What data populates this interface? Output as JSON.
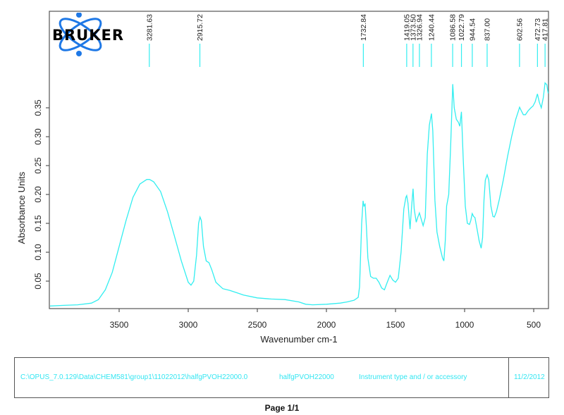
{
  "logo": {
    "text": "BRUKER",
    "icon": "atom-orbit-icon",
    "color": "#1e78e6"
  },
  "chart_data": {
    "type": "line",
    "title": "",
    "xlabel": "Wavenumber cm-1",
    "ylabel": "Absorbance Units",
    "xlim": [
      4005,
      393
    ],
    "ylim": [
      0.004,
      0.41
    ],
    "x_reversed": true,
    "grid": false,
    "legend": null,
    "line_color": "#33eef0",
    "x_ticks": [
      3500,
      3000,
      2500,
      2000,
      1500,
      1000,
      500
    ],
    "x_tick_labels": [
      "3500",
      "3000",
      "2500",
      "2000",
      "1500",
      "1000",
      "500"
    ],
    "y_ticks": [
      0.05,
      0.1,
      0.15,
      0.2,
      0.25,
      0.3,
      0.35
    ],
    "y_tick_labels": [
      "0.05",
      "0.10",
      "0.15",
      "0.20",
      "0.25",
      "0.30",
      "0.35"
    ],
    "peak_labels": [
      "3281.63",
      "2915.72",
      "1732.84",
      "1419.05",
      "1373.50",
      "1326.94",
      "1240.44",
      "1086.58",
      "1022.79",
      "944.54",
      "837.00",
      "602.56",
      "472.73",
      "417.81"
    ],
    "peaks": [
      3281.63,
      2915.72,
      1732.84,
      1419.05,
      1373.5,
      1326.94,
      1240.44,
      1086.58,
      1022.79,
      944.54,
      837.0,
      602.56,
      472.73,
      417.81
    ],
    "series": [
      {
        "name": "halfgPVOH22000",
        "x": [
          4000,
          3900,
          3800,
          3700,
          3650,
          3600,
          3550,
          3500,
          3450,
          3400,
          3350,
          3300,
          3280,
          3250,
          3200,
          3150,
          3100,
          3050,
          3000,
          2980,
          2960,
          2940,
          2925,
          2915,
          2905,
          2890,
          2870,
          2850,
          2830,
          2800,
          2750,
          2700,
          2650,
          2600,
          2500,
          2400,
          2300,
          2200,
          2150,
          2100,
          2000,
          1900,
          1850,
          1800,
          1770,
          1760,
          1745,
          1735,
          1728,
          1720,
          1710,
          1700,
          1680,
          1660,
          1640,
          1620,
          1600,
          1580,
          1560,
          1540,
          1520,
          1500,
          1480,
          1460,
          1440,
          1425,
          1419,
          1410,
          1395,
          1385,
          1373,
          1365,
          1350,
          1340,
          1327,
          1315,
          1300,
          1285,
          1270,
          1255,
          1240,
          1230,
          1215,
          1200,
          1180,
          1160,
          1150,
          1140,
          1130,
          1115,
          1100,
          1086,
          1075,
          1060,
          1045,
          1035,
          1023,
          1010,
          995,
          980,
          965,
          955,
          945,
          935,
          925,
          910,
          895,
          880,
          870,
          860,
          850,
          837,
          825,
          810,
          795,
          785,
          770,
          750,
          720,
          690,
          660,
          630,
          610,
          602,
          590,
          575,
          560,
          540,
          520,
          505,
          490,
          473,
          460,
          445,
          430,
          418,
          405,
          395
        ],
        "values": [
          0.007,
          0.008,
          0.009,
          0.012,
          0.018,
          0.035,
          0.065,
          0.11,
          0.155,
          0.195,
          0.218,
          0.226,
          0.226,
          0.222,
          0.205,
          0.17,
          0.128,
          0.085,
          0.048,
          0.043,
          0.05,
          0.095,
          0.15,
          0.161,
          0.155,
          0.11,
          0.085,
          0.082,
          0.07,
          0.048,
          0.037,
          0.034,
          0.03,
          0.026,
          0.021,
          0.019,
          0.018,
          0.014,
          0.01,
          0.009,
          0.01,
          0.012,
          0.014,
          0.017,
          0.022,
          0.04,
          0.15,
          0.189,
          0.18,
          0.183,
          0.14,
          0.09,
          0.058,
          0.055,
          0.055,
          0.048,
          0.038,
          0.035,
          0.048,
          0.06,
          0.052,
          0.048,
          0.055,
          0.1,
          0.175,
          0.195,
          0.198,
          0.185,
          0.14,
          0.175,
          0.21,
          0.175,
          0.152,
          0.16,
          0.168,
          0.158,
          0.146,
          0.16,
          0.27,
          0.32,
          0.34,
          0.31,
          0.19,
          0.135,
          0.11,
          0.09,
          0.085,
          0.12,
          0.18,
          0.2,
          0.29,
          0.391,
          0.35,
          0.33,
          0.325,
          0.318,
          0.343,
          0.26,
          0.18,
          0.15,
          0.148,
          0.155,
          0.167,
          0.162,
          0.16,
          0.14,
          0.12,
          0.107,
          0.125,
          0.19,
          0.225,
          0.234,
          0.225,
          0.18,
          0.162,
          0.161,
          0.17,
          0.19,
          0.225,
          0.265,
          0.3,
          0.33,
          0.345,
          0.351,
          0.345,
          0.338,
          0.338,
          0.345,
          0.35,
          0.353,
          0.36,
          0.374,
          0.36,
          0.35,
          0.368,
          0.393,
          0.39,
          0.375
        ]
      }
    ]
  },
  "footer": {
    "file_path": "C:\\OPUS_7.0.129\\Data\\CHEM581\\group1\\11022012\\halfgPVOH22000.0",
    "sample_name": "halfgPVOH22000",
    "instrument": "Instrument type and / or accessory",
    "date": "11/2/2012"
  },
  "page": {
    "label": "Page 1/1"
  }
}
